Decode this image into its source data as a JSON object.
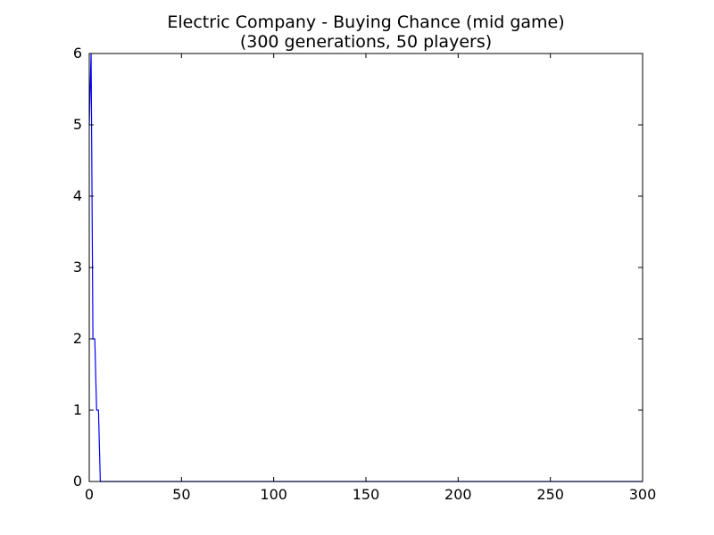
{
  "chart_data": {
    "type": "line",
    "title_line1": "Electric Company - Buying Chance (mid game)",
    "title_line2": "(300 generations, 50 players)",
    "xlabel": "",
    "ylabel": "",
    "xlim": [
      0,
      300
    ],
    "ylim": [
      0,
      6
    ],
    "x_ticks": [
      "0",
      "50",
      "100",
      "150",
      "200",
      "250",
      "300"
    ],
    "y_ticks": [
      "0",
      "1",
      "2",
      "3",
      "4",
      "5",
      "6"
    ],
    "grid": false,
    "series": [
      {
        "color": "#0000ff",
        "points": [
          [
            0,
            5
          ],
          [
            1,
            6
          ],
          [
            2,
            2
          ],
          [
            3,
            2
          ],
          [
            4,
            1
          ],
          [
            5,
            1
          ],
          [
            6,
            0
          ],
          [
            300,
            0
          ]
        ]
      }
    ]
  }
}
